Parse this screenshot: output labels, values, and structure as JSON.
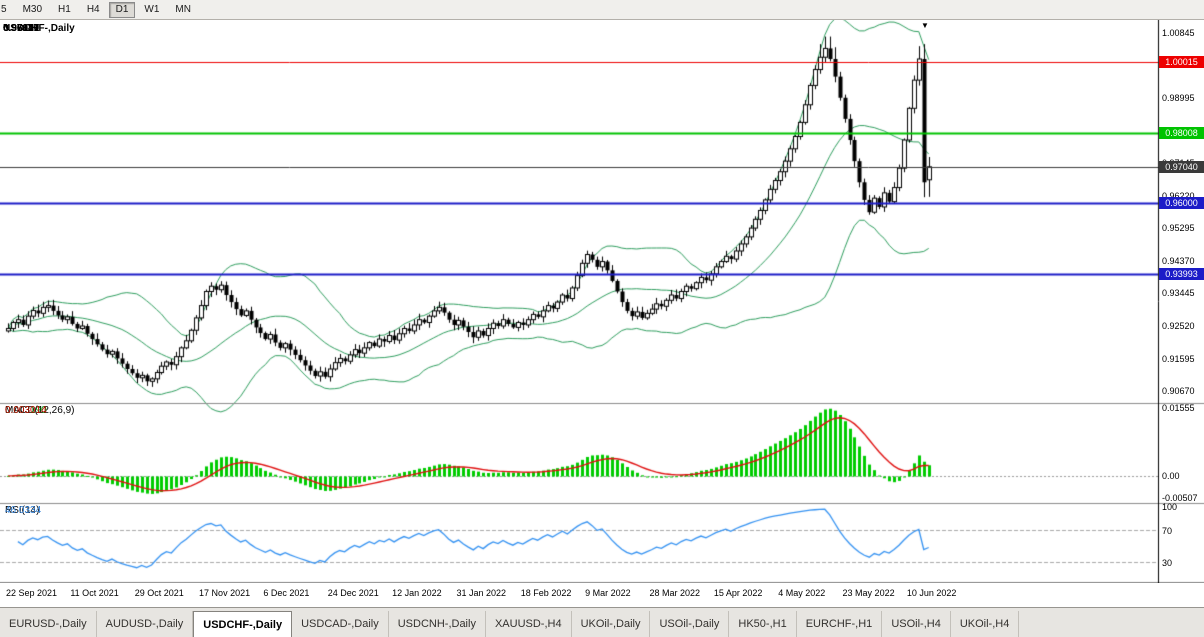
{
  "toolbar": {
    "timeframes": [
      {
        "label": "5",
        "active": false
      },
      {
        "label": "M30",
        "active": false
      },
      {
        "label": "H1",
        "active": false
      },
      {
        "label": "H4",
        "active": false
      },
      {
        "label": "D1",
        "active": true
      },
      {
        "label": "W1",
        "active": false
      },
      {
        "label": "MN",
        "active": false
      }
    ]
  },
  "chart": {
    "symbol": "USDCHF-,Daily",
    "open": "0.96671",
    "high": "0.97317",
    "low": "0.96187",
    "close": "0.97040"
  },
  "indicators": {
    "macd": {
      "name": "MACD(12,26,9)",
      "main": "0.003190",
      "signal": "0.003014"
    },
    "rsi": {
      "name": "RSI(14)",
      "value": "46.0334"
    }
  },
  "chart_data": {
    "type": "candlestick",
    "symbol": "USDCHF",
    "timeframe": "Daily",
    "last_bar": {
      "open": 0.96671,
      "high": 0.97317,
      "low": 0.96187,
      "close": 0.9704
    },
    "first_open": 0.9238,
    "price_axis": {
      "ylim": {
        "max": 1.0115,
        "min": 0.9042
      },
      "ticks": [
        "1.00845",
        "0.99920",
        "0.98995",
        "0.98070",
        "0.97145",
        "0.96220",
        "0.95295",
        "0.94370",
        "0.93445",
        "0.92520",
        "0.91595",
        "0.90670"
      ]
    },
    "closes": [
      0.9245,
      0.9262,
      0.927,
      0.9255,
      0.928,
      0.9296,
      0.9288,
      0.9305,
      0.931,
      0.9295,
      0.9282,
      0.927,
      0.9278,
      0.9258,
      0.9245,
      0.9252,
      0.923,
      0.9215,
      0.92,
      0.9185,
      0.9172,
      0.918,
      0.916,
      0.9145,
      0.913,
      0.9118,
      0.9105,
      0.9112,
      0.9095,
      0.9102,
      0.912,
      0.9138,
      0.915,
      0.9142,
      0.9165,
      0.919,
      0.921,
      0.924,
      0.9275,
      0.931,
      0.935,
      0.9365,
      0.9355,
      0.9368,
      0.934,
      0.932,
      0.93,
      0.9282,
      0.9295,
      0.927,
      0.9248,
      0.9232,
      0.9215,
      0.9228,
      0.9205,
      0.919,
      0.9202,
      0.9185,
      0.917,
      0.9155,
      0.914,
      0.9125,
      0.911,
      0.9122,
      0.9108,
      0.913,
      0.9148,
      0.916,
      0.9152,
      0.917,
      0.9185,
      0.9175,
      0.919,
      0.9205,
      0.9195,
      0.9215,
      0.9208,
      0.9225,
      0.9212,
      0.923,
      0.9245,
      0.9238,
      0.9255,
      0.927,
      0.9262,
      0.928,
      0.9295,
      0.9305,
      0.929,
      0.927,
      0.9255,
      0.9268,
      0.925,
      0.9235,
      0.922,
      0.9238,
      0.9225,
      0.9245,
      0.926,
      0.9252,
      0.927,
      0.9258,
      0.9248,
      0.9262,
      0.9255,
      0.927,
      0.9285,
      0.9278,
      0.9295,
      0.931,
      0.9302,
      0.932,
      0.934,
      0.933,
      0.936,
      0.9395,
      0.943,
      0.9455,
      0.944,
      0.942,
      0.9435,
      0.941,
      0.938,
      0.935,
      0.932,
      0.9295,
      0.928,
      0.9292,
      0.9275,
      0.9288,
      0.93,
      0.9315,
      0.9308,
      0.9325,
      0.934,
      0.933,
      0.935,
      0.9365,
      0.9358,
      0.9375,
      0.939,
      0.9382,
      0.94,
      0.942,
      0.9435,
      0.945,
      0.9442,
      0.9465,
      0.9485,
      0.9505,
      0.953,
      0.9555,
      0.958,
      0.961,
      0.964,
      0.9665,
      0.969,
      0.972,
      0.9755,
      0.979,
      0.983,
      0.988,
      0.9935,
      0.998,
      1.0015,
      1.004,
      1.001,
      0.996,
      0.99,
      0.984,
      0.978,
      0.972,
      0.966,
      0.961,
      0.9575,
      0.9615,
      0.959,
      0.963,
      0.9605,
      0.9645,
      0.97,
      0.978,
      0.987,
      0.995,
      1.001,
      0.966,
      0.9704
    ],
    "x_labels": [
      "22 Sep 2021",
      "11 Oct 2021",
      "29 Oct 2021",
      "17 Nov 2021",
      "6 Dec 2021",
      "24 Dec 2021",
      "12 Jan 2022",
      "31 Jan 2022",
      "18 Feb 2022",
      "9 Mar 2022",
      "28 Mar 2022",
      "15 Apr 2022",
      "4 May 2022",
      "23 May 2022",
      "10 Jun 2022"
    ],
    "hlines": [
      {
        "price": 1.00015,
        "label": "1.00015",
        "color": "#ee0000",
        "width": 1
      },
      {
        "price": 0.98008,
        "label": "0.98008",
        "color": "#00c300",
        "width": 2
      },
      {
        "price": 0.9704,
        "label": "0.97040",
        "color": "#3a3a3a",
        "width": 1
      },
      {
        "price": 0.96,
        "label": "0.96000",
        "color": "#1c1cc8",
        "width": 2
      },
      {
        "price": 0.93993,
        "label": "0.93993",
        "color": "#1c1cc8",
        "width": 2
      }
    ],
    "macd": {
      "params": [
        12,
        26,
        9
      ],
      "ylim": {
        "max": 0.01555,
        "min": -0.00507
      },
      "ticks": [
        {
          "v": 0.01555,
          "label": "0.01555"
        },
        {
          "v": 0,
          "label": "0.00"
        },
        {
          "v": -0.00507,
          "label": "-0.00507"
        }
      ],
      "histogram_color": "#00cc00",
      "signal_color": "#e01010"
    },
    "rsi": {
      "period": 14,
      "levels": [
        70,
        30
      ],
      "ticks": [
        {
          "v": 100,
          "label": "100"
        },
        {
          "v": 70,
          "label": "70"
        },
        {
          "v": 30,
          "label": "30"
        }
      ],
      "line_color": "#3492f2"
    },
    "bollinger": {
      "period": 20,
      "deviation": 2,
      "color": "#2e9e5e"
    },
    "candle_colors": {
      "up_fill": "#ffffff",
      "down_fill": "#000000",
      "outline": "#000000"
    }
  },
  "tabs": [
    {
      "label": "EURUSD-,Daily",
      "active": false
    },
    {
      "label": "AUDUSD-,Daily",
      "active": false
    },
    {
      "label": "USDCHF-,Daily",
      "active": true
    },
    {
      "label": "USDCAD-,Daily",
      "active": false
    },
    {
      "label": "USDCNH-,Daily",
      "active": false
    },
    {
      "label": "XAUUSD-,H4",
      "active": false
    },
    {
      "label": "UKOil-,Daily",
      "active": false
    },
    {
      "label": "USOil-,Daily",
      "active": false
    },
    {
      "label": "HK50-,H1",
      "active": false
    },
    {
      "label": "EURCHF-,H1",
      "active": false
    },
    {
      "label": "USOil-,H4",
      "active": false
    },
    {
      "label": "UKOil-,H4",
      "active": false
    }
  ]
}
